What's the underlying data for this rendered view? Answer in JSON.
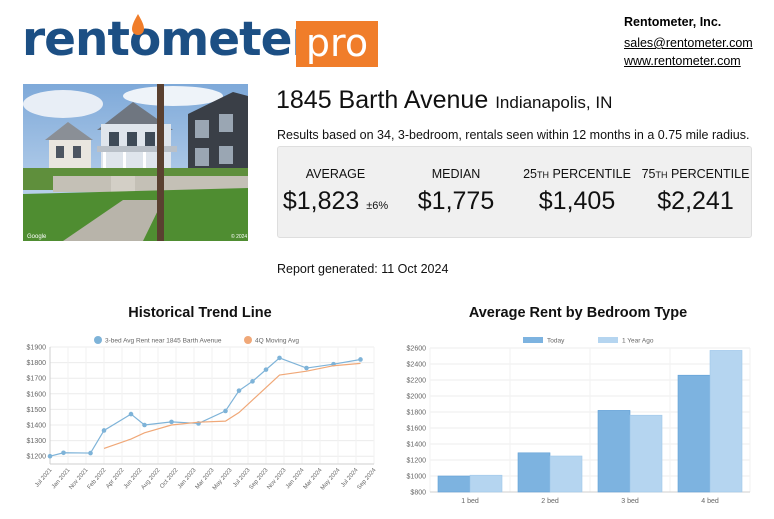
{
  "logo": {
    "text_pre": "rent",
    "text_o": "o",
    "text_post": "meter",
    "pro": "pro",
    "brand_color": "#1c4f84",
    "accent_color": "#f07d2a"
  },
  "company": {
    "name": "Rentometer, Inc.",
    "email": "sales@rentometer.com",
    "website": "www.rentometer.com"
  },
  "property": {
    "address": "1845 Barth Avenue",
    "city": "Indianapolis, IN"
  },
  "summary": "Results based on 34, 3-bedroom, rentals seen within 12 months in a 0.75 mile radius.",
  "stats": {
    "average": {
      "label": "AVERAGE",
      "value": "$1,823",
      "note": "±6%"
    },
    "median": {
      "label": "MEDIAN",
      "value": "$1,775"
    },
    "p25": {
      "num": "25",
      "suffix": "TH",
      "label": " PERCENTILE",
      "value": "$1,405"
    },
    "p75": {
      "num": "75",
      "suffix": "TH",
      "label": " PERCENTILE",
      "value": "$2,241"
    }
  },
  "report_generated": "Report generated: 11 Oct 2024",
  "chart_data": [
    {
      "type": "line",
      "title": "Historical Trend Line",
      "x": [
        "Jul 2021",
        "Jan 2021",
        "Nov 2021",
        "Jan 2022",
        "Feb 2022",
        "Mar 2022",
        "Apr 2022",
        "May 2022",
        "Jun 2022",
        "Jul 2022",
        "Aug 2022",
        "Sep 2022",
        "Oct 2022",
        "Jan 2023",
        "Feb 2023",
        "Mar 2023",
        "May 2023",
        "Jul 2023",
        "Sep 2023",
        "Nov 2023",
        "Jan 2024",
        "Mar 2024",
        "May 2024",
        "Jul 2024",
        "Sep 2024"
      ],
      "x_tick_labels": [
        "Jul 2021",
        "Jan 2021",
        "Nov 2021",
        "Feb 2022",
        "Apr 2022",
        "Jun 2022",
        "Aug 2022",
        "Oct 2022",
        "Jan 2023",
        "Mar 2023",
        "May 2023",
        "Jul 2023",
        "Sep 2023",
        "Nov 2023",
        "Jan 2024",
        "Mar 2024",
        "May 2024",
        "Jul 2024",
        "Sep 2024"
      ],
      "ylim": [
        1150,
        1900
      ],
      "y_ticks": [
        "$1200",
        "$1300",
        "$1400",
        "$1500",
        "$1600",
        "$1700",
        "$1800",
        "$1900"
      ],
      "series": [
        {
          "name": "3-bed Avg Rent near 1845 Barth Avenue",
          "color": "#7eb3d8",
          "values": [
            1200,
            1222,
            null,
            1220,
            1365,
            null,
            1470,
            1400,
            null,
            1420,
            null,
            1410,
            null,
            1490,
            1620,
            1680,
            1755,
            1830,
            null,
            1765,
            null,
            1790,
            null,
            1820,
            null
          ]
        },
        {
          "name": "4Q Moving Avg",
          "color": "#f0a878",
          "values": [
            null,
            null,
            null,
            null,
            1250,
            null,
            1310,
            1350,
            null,
            1400,
            null,
            1418,
            null,
            1425,
            1480,
            1560,
            1640,
            1720,
            null,
            1745,
            null,
            1780,
            null,
            1795,
            null
          ]
        }
      ]
    },
    {
      "type": "bar",
      "title": "Average Rent by Bedroom Type",
      "categories": [
        "1 bed",
        "2 bed",
        "3 bed",
        "4 bed"
      ],
      "ylim": [
        800,
        2600
      ],
      "y_ticks": [
        "$800",
        "$1000",
        "$1200",
        "$1400",
        "$1600",
        "$1800",
        "$2000",
        "$2200",
        "$2400",
        "$2600"
      ],
      "series": [
        {
          "name": "Today",
          "color": "#7db3e0",
          "values": [
            1000,
            1290,
            1820,
            2260
          ]
        },
        {
          "name": "1 Year Ago",
          "color": "#b5d5f0",
          "values": [
            1010,
            1250,
            1760,
            2570
          ]
        }
      ]
    }
  ]
}
